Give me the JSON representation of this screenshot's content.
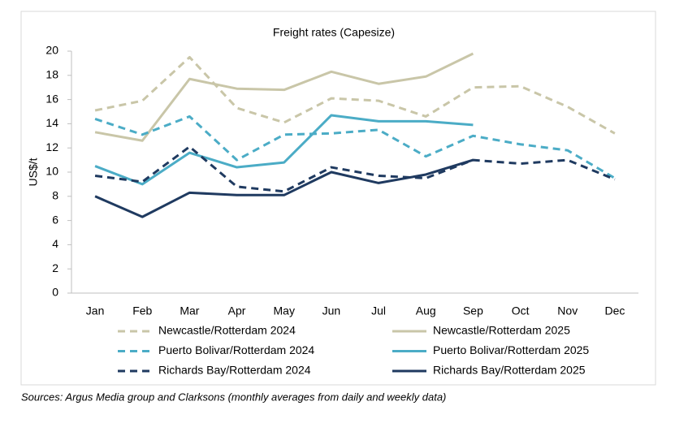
{
  "chart_data": {
    "type": "line",
    "title": "Freight rates (Capesize)",
    "y_label": "US$/t",
    "categories": [
      "Jan",
      "Feb",
      "Mar",
      "Apr",
      "May",
      "Jun",
      "Jul",
      "Aug",
      "Sep",
      "Oct",
      "Nov",
      "Dec"
    ],
    "ylim": [
      0,
      20
    ],
    "yticks": [
      0,
      2,
      4,
      6,
      8,
      10,
      12,
      14,
      16,
      18,
      20
    ],
    "grid": false,
    "series": [
      {
        "name": "Newcastle/Rotterdam 2024",
        "color": "#c9c6a8",
        "dashed": true,
        "values": [
          15.1,
          15.9,
          19.5,
          15.3,
          14.1,
          16.1,
          15.9,
          14.6,
          17.0,
          17.1,
          15.4,
          13.2
        ]
      },
      {
        "name": "Newcastle/Rotterdam 2025",
        "color": "#c9c6a8",
        "dashed": false,
        "values": [
          13.3,
          12.6,
          17.7,
          16.9,
          16.8,
          18.3,
          17.3,
          17.9,
          19.8,
          null,
          null,
          null
        ]
      },
      {
        "name": "Puerto Bolivar/Rotterdam 2024",
        "color": "#4bacc6",
        "dashed": true,
        "values": [
          14.4,
          13.1,
          14.6,
          11.0,
          13.1,
          13.2,
          13.5,
          11.3,
          13.0,
          12.3,
          11.8,
          9.5
        ]
      },
      {
        "name": "Puerto Bolivar/Rotterdam 2025",
        "color": "#4bacc6",
        "dashed": false,
        "values": [
          10.5,
          9.0,
          11.6,
          10.4,
          10.8,
          14.7,
          14.2,
          14.2,
          13.9,
          null,
          null,
          null
        ]
      },
      {
        "name": "Richards Bay/Rotterdam 2024",
        "color": "#1f3a60",
        "dashed": true,
        "values": [
          9.7,
          9.2,
          12.1,
          8.8,
          8.4,
          10.4,
          9.7,
          9.5,
          11.0,
          10.7,
          11.0,
          9.4
        ]
      },
      {
        "name": "Richards Bay/Rotterdam 2025",
        "color": "#1f3a60",
        "dashed": false,
        "values": [
          8.0,
          6.3,
          8.3,
          8.1,
          8.1,
          10.0,
          9.1,
          9.8,
          11.0,
          null,
          null,
          null
        ]
      }
    ],
    "note": "Sources:  Argus Media group and Clarksons (monthly averages from daily and weekly data)"
  }
}
